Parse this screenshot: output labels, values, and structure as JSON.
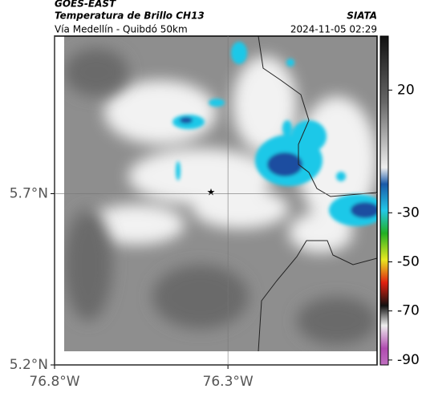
{
  "header": {
    "satellite": "GOES-EAST",
    "product": "Temperatura de Brillo CH13",
    "agency": "SIATA",
    "route": "Vía Medellín - Quibdó 50km",
    "timestamp": "2024-11-05 02:29"
  },
  "map": {
    "xlim": [
      -76.8,
      -75.87
    ],
    "ylim": [
      5.2,
      6.16
    ],
    "xticks": [
      {
        "value": -76.8,
        "label": "76.8°W"
      },
      {
        "value": -76.3,
        "label": "76.3°W"
      }
    ],
    "yticks": [
      {
        "value": 5.7,
        "label": "5.7°N"
      },
      {
        "value": 5.2,
        "label": "5.2°N"
      }
    ]
  },
  "colorbar": {
    "lim": [
      42,
      -92
    ],
    "ticks": [
      20,
      -30,
      -50,
      -70,
      -90
    ]
  }
}
